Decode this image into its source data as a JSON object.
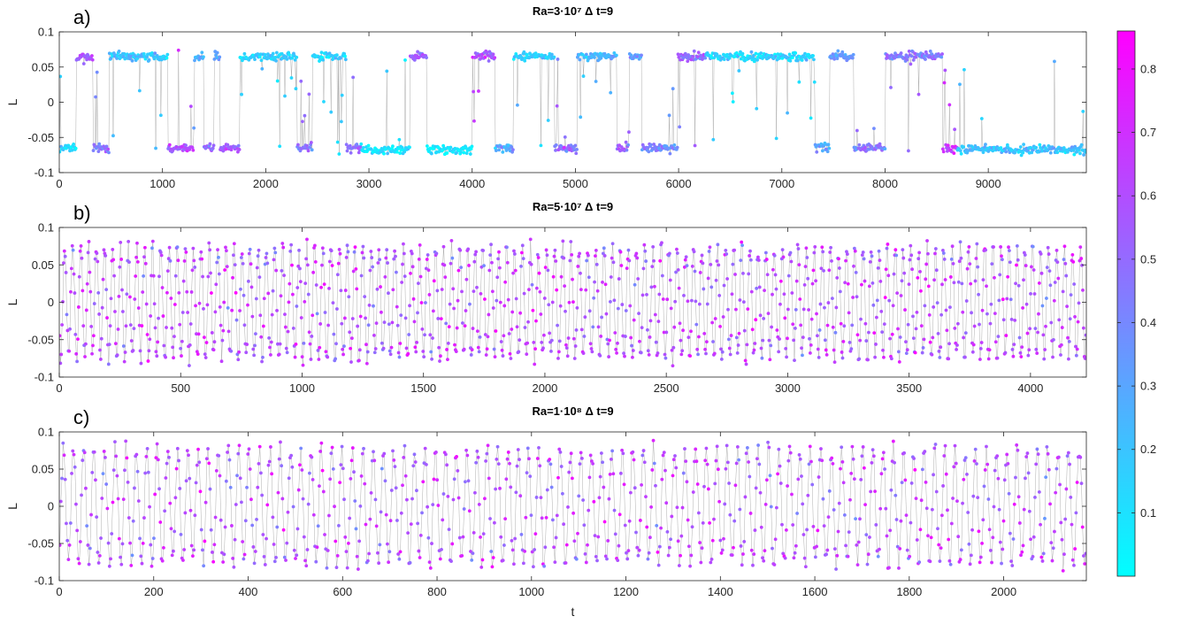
{
  "chart_data": [
    {
      "type": "scatter",
      "panel_label": "a)",
      "title": "Ra=3·10⁷ Δ t=9",
      "xlabel": "",
      "ylabel": "L",
      "xlim": [
        0,
        9950
      ],
      "ylim": [
        -0.1,
        0.1
      ],
      "xticks": [
        0,
        1000,
        2000,
        3000,
        4000,
        5000,
        6000,
        7000,
        8000,
        9000
      ],
      "yticks": [
        -0.1,
        -0.05,
        0,
        0.05,
        0.1
      ],
      "ytick_labels": [
        "-0.1",
        "-0.05",
        "0",
        "0.05",
        "0.1"
      ],
      "connected_line_color": "#9a9a9a",
      "n_points": 1400,
      "color_range": [
        0.02,
        0.86
      ],
      "segments": [
        {
          "t": [
            0,
            160
          ],
          "level": -0.065,
          "c": 0.12
        },
        {
          "t": [
            160,
            330
          ],
          "level": 0.065,
          "c": 0.55
        },
        {
          "t": [
            330,
            480
          ],
          "level": -0.065,
          "c": 0.45
        },
        {
          "t": [
            480,
            1050
          ],
          "level": 0.065,
          "c": 0.2
        },
        {
          "t": [
            1050,
            1300
          ],
          "level": -0.065,
          "c": 0.6
        },
        {
          "t": [
            1300,
            1400
          ],
          "level": 0.065,
          "c": 0.3
        },
        {
          "t": [
            1400,
            1500
          ],
          "level": -0.065,
          "c": 0.5
        },
        {
          "t": [
            1500,
            1560
          ],
          "level": 0.065,
          "c": 0.3
        },
        {
          "t": [
            1560,
            1750
          ],
          "level": -0.065,
          "c": 0.55
        },
        {
          "t": [
            1750,
            2300
          ],
          "level": 0.065,
          "c": 0.15
        },
        {
          "t": [
            2300,
            2450
          ],
          "level": -0.065,
          "c": 0.45
        },
        {
          "t": [
            2450,
            2780
          ],
          "level": 0.065,
          "c": 0.15
        },
        {
          "t": [
            2780,
            2920
          ],
          "level": -0.065,
          "c": 0.5
        },
        {
          "t": [
            2920,
            3400
          ],
          "level": -0.068,
          "c": 0.1
        },
        {
          "t": [
            3400,
            3560
          ],
          "level": 0.065,
          "c": 0.55
        },
        {
          "t": [
            3560,
            4000
          ],
          "level": -0.068,
          "c": 0.08
        },
        {
          "t": [
            4000,
            4220
          ],
          "level": 0.065,
          "c": 0.6
        },
        {
          "t": [
            4220,
            4400
          ],
          "level": -0.065,
          "c": 0.3
        },
        {
          "t": [
            4400,
            4800
          ],
          "level": 0.065,
          "c": 0.15
        },
        {
          "t": [
            4800,
            5020
          ],
          "level": -0.065,
          "c": 0.5
        },
        {
          "t": [
            5020,
            5400
          ],
          "level": 0.065,
          "c": 0.25
        },
        {
          "t": [
            5400,
            5520
          ],
          "level": -0.065,
          "c": 0.5
        },
        {
          "t": [
            5520,
            5640
          ],
          "level": 0.065,
          "c": 0.35
        },
        {
          "t": [
            5640,
            5990
          ],
          "level": -0.065,
          "c": 0.4
        },
        {
          "t": [
            5990,
            6260
          ],
          "level": 0.065,
          "c": 0.5
        },
        {
          "t": [
            6260,
            6640
          ],
          "level": 0.065,
          "c": 0.15
        },
        {
          "t": [
            6640,
            7320
          ],
          "level": 0.065,
          "c": 0.15
        },
        {
          "t": [
            7320,
            7460
          ],
          "level": -0.065,
          "c": 0.3
        },
        {
          "t": [
            7460,
            7700
          ],
          "level": 0.065,
          "c": 0.35
        },
        {
          "t": [
            7700,
            8000
          ],
          "level": -0.065,
          "c": 0.45
        },
        {
          "t": [
            8000,
            8560
          ],
          "level": 0.065,
          "c": 0.45
        },
        {
          "t": [
            8560,
            8700
          ],
          "level": -0.065,
          "c": 0.7
        },
        {
          "t": [
            8700,
            9950
          ],
          "level": -0.067,
          "c": 0.2
        }
      ]
    },
    {
      "type": "scatter",
      "panel_label": "b)",
      "title": "Ra=5·10⁷ Δ t=9",
      "xlabel": "",
      "ylabel": "L",
      "xlim": [
        0,
        4230
      ],
      "ylim": [
        -0.1,
        0.1
      ],
      "xticks": [
        0,
        500,
        1000,
        1500,
        2000,
        2500,
        3000,
        3500,
        4000
      ],
      "yticks": [
        -0.1,
        -0.05,
        0,
        0.05,
        0.1
      ],
      "ytick_labels": [
        "-0.1",
        "-0.05",
        "0",
        "0.05",
        "0.1"
      ],
      "connected_line_color": "#9a9a9a",
      "n_points": 1300,
      "oscillation_period": 33,
      "amplitude": 0.072,
      "color_range": [
        0.02,
        0.86
      ]
    },
    {
      "type": "scatter",
      "panel_label": "c)",
      "title": "Ra=1·10⁸ Δ t=9",
      "xlabel": "t",
      "ylabel": "L",
      "xlim": [
        0,
        2175
      ],
      "ylim": [
        -0.1,
        0.1
      ],
      "xticks": [
        0,
        200,
        400,
        600,
        800,
        1000,
        1200,
        1400,
        1600,
        1800,
        2000
      ],
      "yticks": [
        -0.1,
        -0.05,
        0,
        0.05,
        0.1
      ],
      "ytick_labels": [
        "-0.1",
        "-0.05",
        "0",
        "0.05",
        "0.1"
      ],
      "connected_line_color": "#9a9a9a",
      "n_points": 950,
      "oscillation_period": 22,
      "amplitude": 0.075,
      "color_range": [
        0.02,
        0.86
      ]
    }
  ],
  "colorbar": {
    "colormap": "cool",
    "color_low": "#00ffff",
    "color_high": "#ff00ff",
    "range": [
      0.0,
      0.86
    ],
    "ticks": [
      0.1,
      0.2,
      0.3,
      0.4,
      0.5,
      0.6,
      0.7,
      0.8
    ]
  }
}
